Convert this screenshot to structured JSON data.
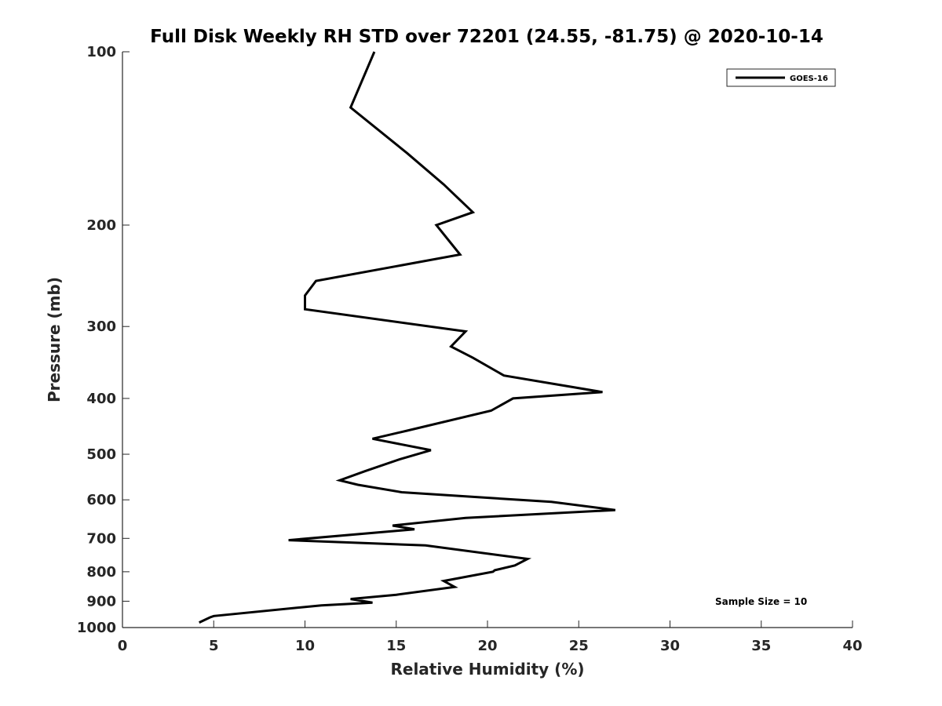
{
  "chart_data": {
    "type": "line",
    "title": "Full Disk Weekly RH STD over 72201 (24.55, -81.75) @ 2020-10-14",
    "xlabel": "Relative Humidity (%)",
    "ylabel": "Pressure (mb)",
    "xlim": [
      0,
      40
    ],
    "ylim": [
      100,
      1000
    ],
    "yscale": "log",
    "yreversed": true,
    "grid": false,
    "x_ticks": [
      0,
      5,
      10,
      15,
      20,
      25,
      30,
      35,
      40
    ],
    "y_ticks": [
      100,
      200,
      300,
      400,
      500,
      600,
      700,
      800,
      900,
      1000
    ],
    "legend": {
      "placement": "top-right",
      "entries": [
        "GOES-16"
      ]
    },
    "annotation": "Sample Size = 10",
    "series": [
      {
        "name": "GOES-16",
        "color": "#000000",
        "points": [
          [
            13.8,
            100
          ],
          [
            12.5,
            125
          ],
          [
            15.6,
            150
          ],
          [
            17.6,
            170
          ],
          [
            19.2,
            190
          ],
          [
            17.2,
            200
          ],
          [
            18.5,
            225
          ],
          [
            10.6,
            250
          ],
          [
            10.0,
            265
          ],
          [
            10.0,
            280
          ],
          [
            18.8,
            306
          ],
          [
            18.0,
            325
          ],
          [
            19.2,
            340
          ],
          [
            20.9,
            365
          ],
          [
            26.3,
            390
          ],
          [
            21.4,
            400
          ],
          [
            20.2,
            420
          ],
          [
            15.6,
            455
          ],
          [
            13.7,
            470
          ],
          [
            16.9,
            492
          ],
          [
            15.2,
            510
          ],
          [
            13.3,
            535
          ],
          [
            11.9,
            555
          ],
          [
            12.9,
            565
          ],
          [
            15.3,
            582
          ],
          [
            23.5,
            605
          ],
          [
            27.0,
            625
          ],
          [
            18.8,
            645
          ],
          [
            14.8,
            665
          ],
          [
            16.0,
            675
          ],
          [
            9.1,
            705
          ],
          [
            16.6,
            720
          ],
          [
            22.2,
            760
          ],
          [
            21.5,
            780
          ],
          [
            20.4,
            795
          ],
          [
            20.3,
            800
          ],
          [
            17.6,
            830
          ],
          [
            18.2,
            850
          ],
          [
            15.0,
            877
          ],
          [
            12.5,
            892
          ],
          [
            13.7,
            905
          ],
          [
            10.9,
            915
          ],
          [
            5.0,
            955
          ],
          [
            4.8,
            960
          ],
          [
            4.2,
            980
          ]
        ]
      }
    ]
  }
}
